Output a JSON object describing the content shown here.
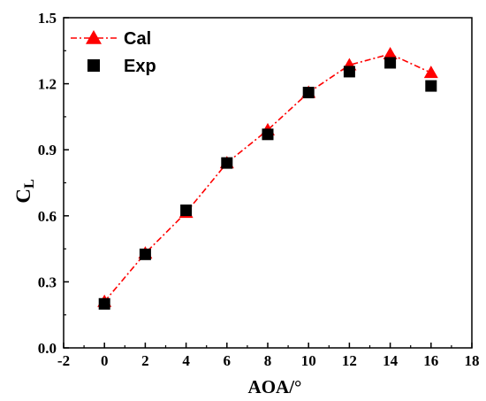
{
  "chart_data": {
    "type": "line",
    "xlabel": "AOA/°",
    "ylabel_main": "C",
    "ylabel_sub": "L",
    "xlim": [
      -2,
      18
    ],
    "ylim": [
      0,
      1.5
    ],
    "x_ticks": [
      -2,
      0,
      2,
      4,
      6,
      8,
      10,
      12,
      14,
      16,
      18
    ],
    "y_ticks": [
      0.0,
      0.3,
      0.6,
      0.9,
      1.2,
      1.5
    ],
    "x_tick_labels": [
      "-2",
      "0",
      "2",
      "4",
      "6",
      "8",
      "10",
      "12",
      "14",
      "16",
      "18"
    ],
    "y_tick_labels": [
      "0.0",
      "0.3",
      "0.6",
      "0.9",
      "1.2",
      "1.5"
    ],
    "grid": false,
    "legend_position": "top-left",
    "series": [
      {
        "name": "Cal",
        "style": "dash-dot line with triangle markers",
        "color": "#ff0000",
        "x": [
          0,
          2,
          4,
          6,
          8,
          10,
          12,
          14,
          16
        ],
        "y": [
          0.21,
          0.43,
          0.615,
          0.84,
          0.99,
          1.16,
          1.285,
          1.335,
          1.25
        ]
      },
      {
        "name": "Exp",
        "style": "square markers",
        "color": "#000000",
        "x": [
          0,
          2,
          4,
          6,
          8,
          10,
          12,
          14,
          16
        ],
        "y": [
          0.2,
          0.425,
          0.625,
          0.84,
          0.97,
          1.16,
          1.255,
          1.295,
          1.19
        ]
      }
    ]
  }
}
